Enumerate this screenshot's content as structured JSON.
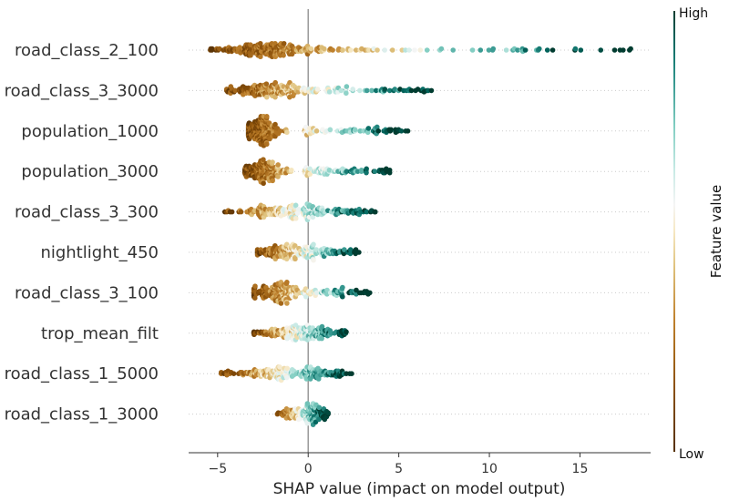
{
  "chart_data": {
    "type": "scatter",
    "subtype": "shap-beeswarm",
    "xlabel": "SHAP value (impact on model output)",
    "xlim": [
      -6.6,
      18.9
    ],
    "xticks": [
      -5,
      0,
      5,
      10,
      15
    ],
    "zero_line": 0,
    "colorbar": {
      "title": "Feature value",
      "high_label": "High",
      "low_label": "Low",
      "low_color": "#543005",
      "mid_color": "#f5f5f5",
      "high_color": "#003c30"
    },
    "features": [
      {
        "name": "road_class_2_100",
        "min": -5.4,
        "max": 17.8,
        "peak": -1.9,
        "count": 260
      },
      {
        "name": "road_class_3_3000",
        "min": -4.5,
        "max": 6.8,
        "peak": -2.0,
        "count": 230
      },
      {
        "name": "population_1000",
        "min": -3.3,
        "max": 5.5,
        "peak": -2.5,
        "count": 230
      },
      {
        "name": "population_3000",
        "min": -3.5,
        "max": 4.5,
        "peak": -2.3,
        "count": 230
      },
      {
        "name": "road_class_3_300",
        "min": -4.6,
        "max": 3.7,
        "peak": -1.2,
        "count": 210
      },
      {
        "name": "nightlight_450",
        "min": -2.8,
        "max": 2.8,
        "peak": -1.0,
        "count": 200
      },
      {
        "name": "road_class_3_100",
        "min": -3.0,
        "max": 3.4,
        "peak": -1.5,
        "count": 210
      },
      {
        "name": "trop_mean_filt",
        "min": -3.0,
        "max": 2.1,
        "peak": -0.8,
        "count": 190
      },
      {
        "name": "road_class_1_5000",
        "min": -4.8,
        "max": 2.4,
        "peak": -1.2,
        "count": 200
      },
      {
        "name": "road_class_1_3000",
        "min": -1.7,
        "max": 1.1,
        "peak": -0.2,
        "count": 140
      }
    ]
  }
}
